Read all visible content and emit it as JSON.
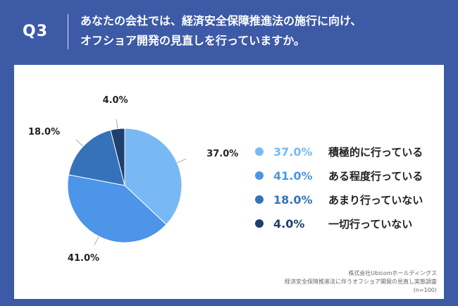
{
  "header": {
    "question_no": "Q3",
    "question_line1": "あなたの会社では、経済安全保障推進法の施行に向け、",
    "question_line2": "オフショア開発の見直しを行っていますか。"
  },
  "chart_data": {
    "type": "pie",
    "categories": [
      "積極的に行っている",
      "ある程度行っている",
      "あまり行っていない",
      "一切行っていない"
    ],
    "values": [
      37.0,
      41.0,
      18.0,
      4.0
    ],
    "labels": [
      "37.0%",
      "41.0%",
      "18.0%",
      "4.0%"
    ],
    "colors": [
      "#78b9f5",
      "#4c95e9",
      "#3572b9",
      "#1f3f6e"
    ],
    "legend_value_colors": [
      "#78b9f5",
      "#4c95e9",
      "#3572b9",
      "#1f3f6e"
    ],
    "legend_placement": "right",
    "start_angle_deg": 0,
    "direction": "clockwise"
  },
  "source": {
    "line1": "株式会社Ubicomホールディングス",
    "line2": "経済安全保障推進法に伴うオフショア開発の見直し実態調査",
    "line3": "(n=100)"
  }
}
